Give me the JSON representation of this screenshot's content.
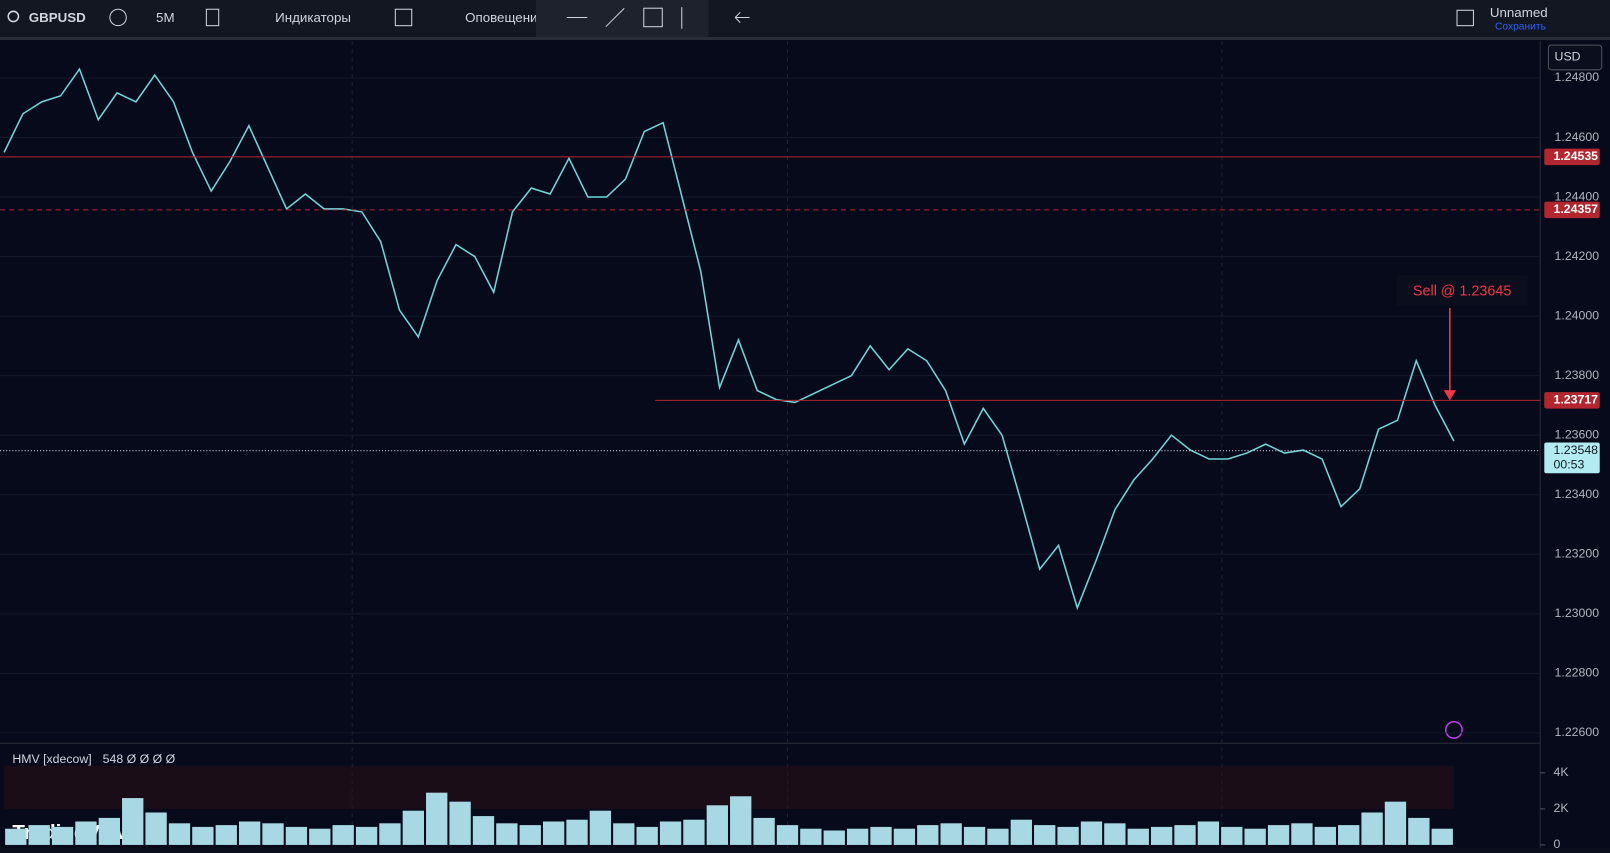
{
  "toolbar": {
    "symbol": "GBPUSD",
    "interval": "5M",
    "indicators": "Индикаторы",
    "alerts": "Оповещени",
    "layout_name": "Unnamed",
    "save": "Сохранить"
  },
  "chart_data": {
    "type": "line",
    "currency": "USD",
    "color": "#6fd6dc",
    "values": [
      1.2455,
      1.2468,
      1.2472,
      1.2474,
      1.2483,
      1.2466,
      1.2475,
      1.2472,
      1.2481,
      1.2472,
      1.2455,
      1.2442,
      1.2452,
      1.2464,
      1.245,
      1.2436,
      1.2441,
      1.2436,
      1.2436,
      1.2435,
      1.2425,
      1.2402,
      1.2393,
      1.2412,
      1.2424,
      1.242,
      1.2408,
      1.2435,
      1.2443,
      1.2441,
      1.2453,
      1.244,
      1.244,
      1.2446,
      1.2462,
      1.2465,
      1.244,
      1.2415,
      1.2376,
      1.2392,
      1.2375,
      1.2372,
      1.2371,
      1.2374,
      1.2377,
      1.238,
      1.239,
      1.2382,
      1.2389,
      1.2385,
      1.2375,
      1.2357,
      1.2369,
      1.236,
      1.2338,
      1.2315,
      1.2323,
      1.2302,
      1.2318,
      1.2335,
      1.2345,
      1.2352,
      1.236,
      1.2355,
      1.2352,
      1.2352,
      1.2354,
      1.2357,
      1.2354,
      1.2355,
      1.2352,
      1.2336,
      1.2342,
      1.2362,
      1.2365,
      1.2385,
      1.237,
      1.2358
    ],
    "ylim": [
      1.22572,
      1.24924
    ],
    "yticks": [
      {
        "value": 1.226,
        "label": "1.22600"
      },
      {
        "value": 1.228,
        "label": "1.22800"
      },
      {
        "value": 1.23,
        "label": "1.23000"
      },
      {
        "value": 1.232,
        "label": "1.23200"
      },
      {
        "value": 1.234,
        "label": "1.23400"
      },
      {
        "value": 1.236,
        "label": "1.23600"
      },
      {
        "value": 1.238,
        "label": "1.23800"
      },
      {
        "value": 1.24,
        "label": "1.24000"
      },
      {
        "value": 1.242,
        "label": "1.24200"
      },
      {
        "value": 1.244,
        "label": "1.24400"
      },
      {
        "value": 1.246,
        "label": "1.24600"
      },
      {
        "value": 1.248,
        "label": "1.24800"
      }
    ],
    "levels": [
      {
        "value": 1.24535,
        "color": "#b2262f",
        "style": "solid"
      },
      {
        "value": 1.24357,
        "color": "#b2262f",
        "style": "dashed"
      },
      {
        "value": 1.23717,
        "color": "#b2262f",
        "style": "solid"
      }
    ],
    "last_price": {
      "value": 1.23548,
      "countdown": "00:53"
    },
    "annotation": "Sell @ 1.23645"
  },
  "indicator": {
    "title": "HMV [xdecow]",
    "readout": "548 Ø Ø Ø Ø",
    "color": "#a8d8e4",
    "values": [
      900,
      1100,
      1000,
      1300,
      1500,
      2600,
      1800,
      1200,
      1000,
      1100,
      1300,
      1200,
      1000,
      900,
      1100,
      1000,
      1200,
      1900,
      2900,
      2400,
      1600,
      1200,
      1100,
      1300,
      1400,
      1900,
      1200,
      1000,
      1300,
      1400,
      2200,
      2700,
      1500,
      1100,
      900,
      800,
      900,
      1000,
      900,
      1100,
      1200,
      1000,
      900,
      1400,
      1100,
      1000,
      1300,
      1200,
      900,
      1000,
      1100,
      1300,
      1000,
      900,
      1100,
      1200,
      1000,
      1100,
      1800,
      2400,
      1500,
      900
    ],
    "ylim": [
      0,
      5300
    ],
    "yticks": [
      0,
      {
        "value": 2000,
        "label": "2K"
      },
      {
        "value": 4000,
        "label": "4K"
      }
    ]
  },
  "watermark": "TradingView"
}
